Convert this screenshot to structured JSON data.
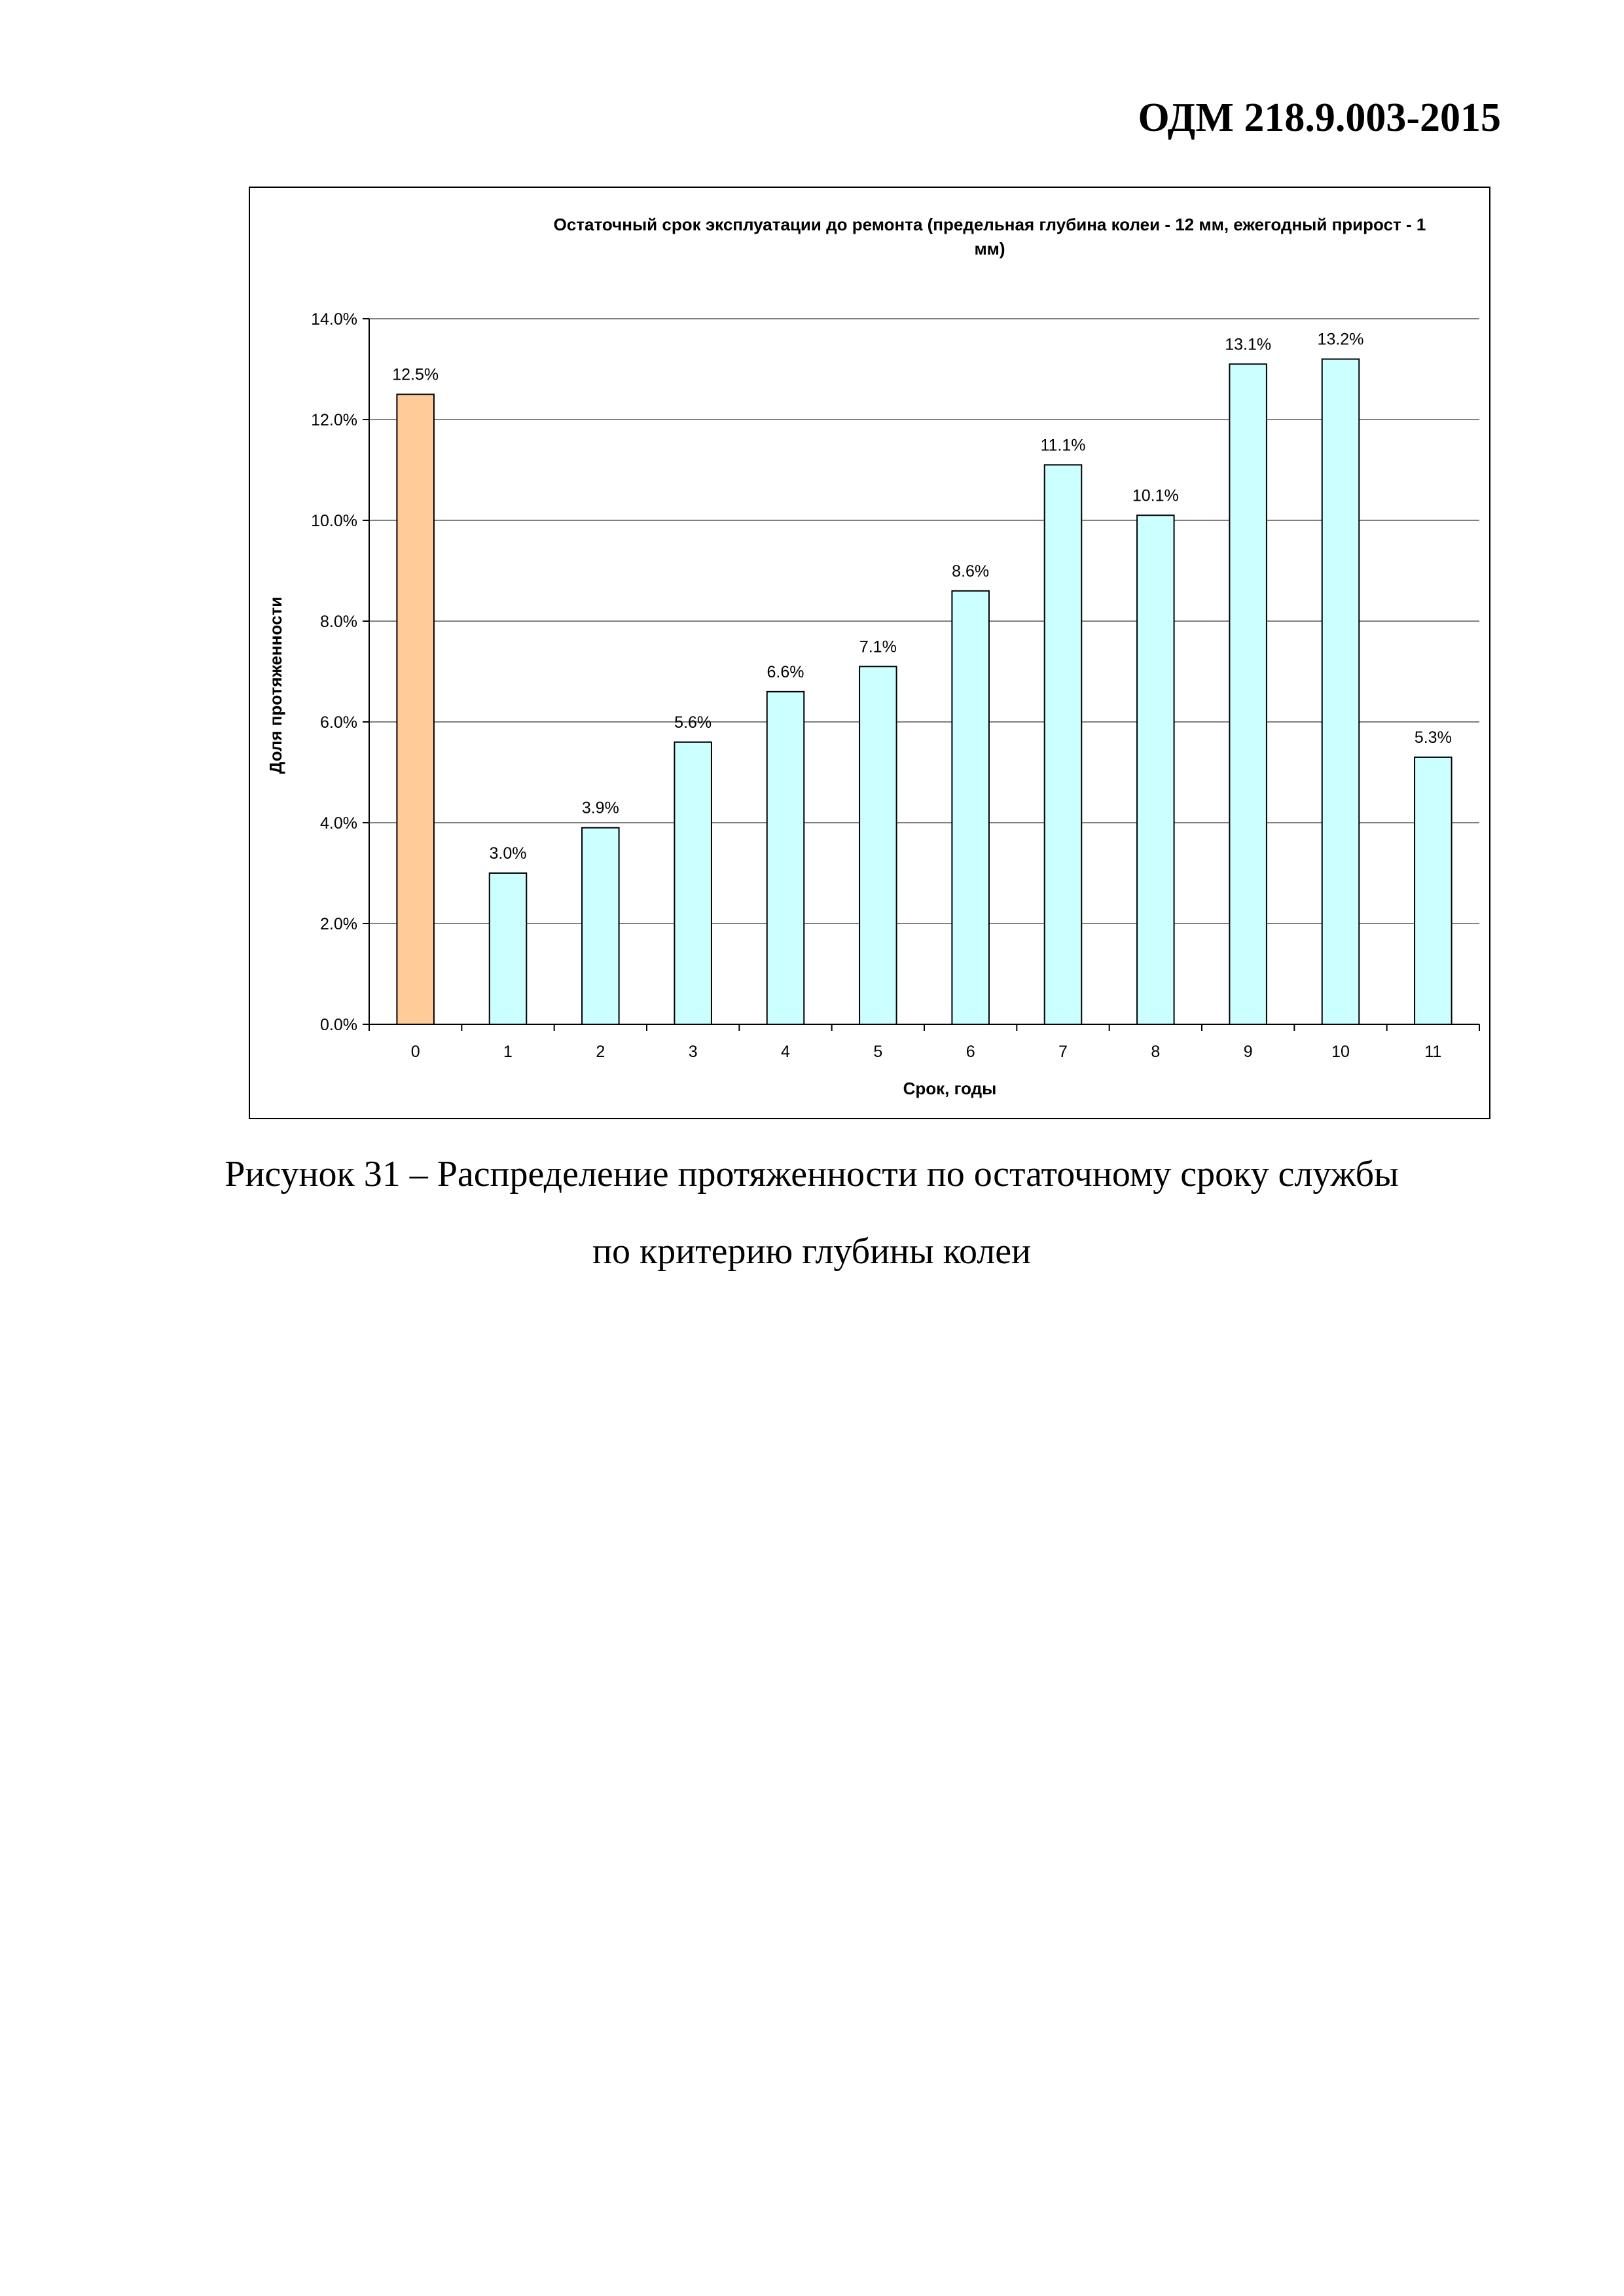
{
  "document": {
    "header_code": "ОДМ 218.9.003-2015",
    "caption_line1": "Рисунок 31 – Распределение протяженности по остаточному сроку службы",
    "caption_line2": "по критерию глубины колеи"
  },
  "chart_data": {
    "type": "bar",
    "title_line1": "Остаточный срок эксплуатации до ремонта (предельная глубина колеи - 12 мм, ежегодный прирост - 1",
    "title_line2": "мм)",
    "xlabel": "Срок, годы",
    "ylabel": "Доля протяженности",
    "categories": [
      "0",
      "1",
      "2",
      "3",
      "4",
      "5",
      "6",
      "7",
      "8",
      "9",
      "10",
      "11"
    ],
    "values": [
      12.5,
      3.0,
      3.9,
      5.6,
      6.6,
      7.1,
      8.6,
      11.1,
      10.1,
      13.1,
      13.2,
      5.3
    ],
    "data_labels": [
      "12.5%",
      "3.0%",
      "3.9%",
      "5.6%",
      "6.6%",
      "7.1%",
      "8.6%",
      "11.1%",
      "10.1%",
      "13.1%",
      "13.2%",
      "5.3%"
    ],
    "ylim": [
      0,
      14
    ],
    "yticks": [
      0,
      2,
      4,
      6,
      8,
      10,
      12,
      14
    ],
    "ytick_labels": [
      "0.0%",
      "2.0%",
      "4.0%",
      "6.0%",
      "8.0%",
      "10.0%",
      "12.0%",
      "14.0%"
    ],
    "grid": true,
    "legend": "none",
    "colors": {
      "highlight": "#FFCC99",
      "default": "#CCFFFF",
      "edge": "#000000",
      "grid": "#808080"
    },
    "highlight_index": 0
  }
}
